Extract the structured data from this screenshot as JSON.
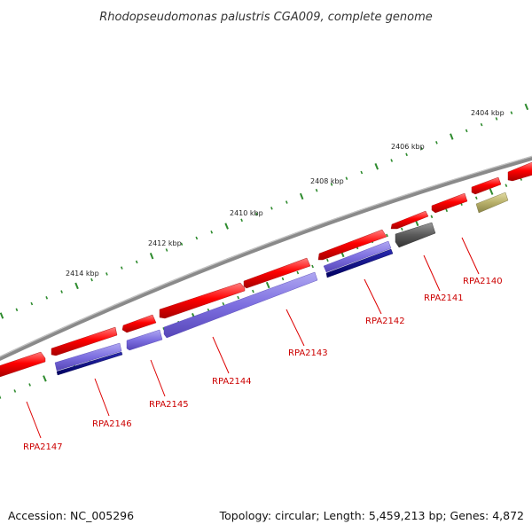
{
  "title": "Rhodopseudomonas palustris CGA009, complete genome",
  "footer": {
    "accession": "Accession: NC_005296",
    "summary": "Topology: circular; Length: 5,459,213 bp; Genes: 4,872"
  },
  "colors": {
    "backbone": "#7a7a7a",
    "cds_forward": "#ff0000",
    "cds_reverse_light": "#7d6fe0",
    "cds_reverse_dark": "#0a0a8c",
    "cds_grey": "#555555",
    "cds_olive": "#b8b06a",
    "tick": "#2e8b2e",
    "label": "#cc0000"
  },
  "scale": {
    "tick_labels": [
      "2404 kbp",
      "2406 kbp",
      "2408 kbp",
      "2410 kbp",
      "2412 kbp",
      "2414 kbp"
    ]
  },
  "genes": [
    {
      "label": "RPA2140"
    },
    {
      "label": "RPA2141"
    },
    {
      "label": "RPA2142"
    },
    {
      "label": "RPA2143"
    },
    {
      "label": "RPA2144"
    },
    {
      "label": "RPA2145"
    },
    {
      "label": "RPA2146"
    },
    {
      "label": "RPA2147"
    }
  ]
}
